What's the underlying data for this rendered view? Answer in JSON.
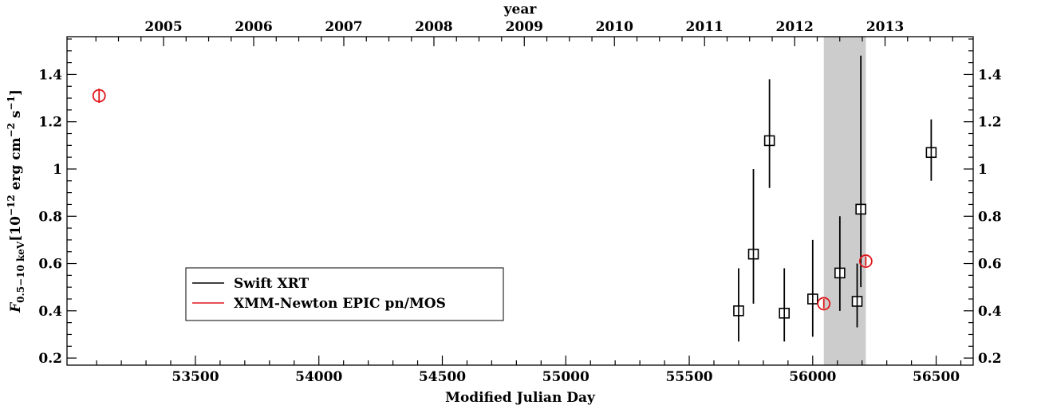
{
  "chart_data": {
    "type": "scatter",
    "xlabel": "Modified Julian Day",
    "ylabel": "F0.5−10 keV [10−12 erg cm−2 s−1]",
    "ylabel_parts": {
      "main": "F",
      "sub": "0.5−10 keV",
      "bracket_open": "[10",
      "exp1": "−12",
      "unit": " erg cm",
      "exp2": "−2",
      "unit2": " s",
      "exp3": "−1",
      "bracket_close": "]"
    },
    "top_axis_label": "year",
    "xlim": [
      52980,
      56650
    ],
    "ylim": [
      0.17,
      1.56
    ],
    "x_ticks": [
      53500,
      54000,
      54500,
      55000,
      55500,
      56000,
      56500
    ],
    "y_ticks": [
      {
        "value": 0.2,
        "label": "0.2"
      },
      {
        "value": 0.4,
        "label": "0.4"
      },
      {
        "value": 0.6,
        "label": "0.6"
      },
      {
        "value": 0.8,
        "label": "0.8"
      },
      {
        "value": 1.0,
        "label": "1"
      },
      {
        "value": 1.2,
        "label": "1.2"
      },
      {
        "value": 1.4,
        "label": "1.4"
      }
    ],
    "year_ticks": [
      {
        "label": "2005",
        "mjd": 53371
      },
      {
        "label": "2006",
        "mjd": 53736
      },
      {
        "label": "2007",
        "mjd": 54101
      },
      {
        "label": "2008",
        "mjd": 54466
      },
      {
        "label": "2009",
        "mjd": 54832
      },
      {
        "label": "2010",
        "mjd": 55197
      },
      {
        "label": "2011",
        "mjd": 55562
      },
      {
        "label": "2012",
        "mjd": 55927
      },
      {
        "label": "2013",
        "mjd": 56293
      }
    ],
    "shaded_region": {
      "x0": 56045,
      "x1": 56215,
      "color": "#cccccc"
    },
    "series": [
      {
        "name": "Swift XRT",
        "color": "#000000",
        "marker": "square",
        "points": [
          {
            "x": 55700,
            "y": 0.4,
            "ylo": 0.27,
            "yhi": 0.58
          },
          {
            "x": 55760,
            "y": 0.64,
            "ylo": 0.43,
            "yhi": 1.0
          },
          {
            "x": 55825,
            "y": 1.12,
            "ylo": 0.92,
            "yhi": 1.38
          },
          {
            "x": 55885,
            "y": 0.39,
            "ylo": 0.27,
            "yhi": 0.58
          },
          {
            "x": 56000,
            "y": 0.45,
            "ylo": 0.29,
            "yhi": 0.7
          },
          {
            "x": 56110,
            "y": 0.56,
            "ylo": 0.4,
            "yhi": 0.8
          },
          {
            "x": 56180,
            "y": 0.44,
            "ylo": 0.33,
            "yhi": 0.6
          },
          {
            "x": 56195,
            "y": 0.83,
            "ylo": 0.5,
            "yhi": 1.48
          },
          {
            "x": 56480,
            "y": 1.07,
            "ylo": 0.95,
            "yhi": 1.21
          }
        ]
      },
      {
        "name": "XMM-Newton EPIC pn/MOS",
        "color": "#e0161b",
        "marker": "circle",
        "points": [
          {
            "x": 53110,
            "y": 1.31,
            "ylo": 1.28,
            "yhi": 1.34
          },
          {
            "x": 56045,
            "y": 0.43,
            "ylo": 0.41,
            "yhi": 0.45
          },
          {
            "x": 56215,
            "y": 0.61,
            "ylo": 0.59,
            "yhi": 0.63
          }
        ]
      }
    ],
    "legend_position": "lower-left"
  }
}
